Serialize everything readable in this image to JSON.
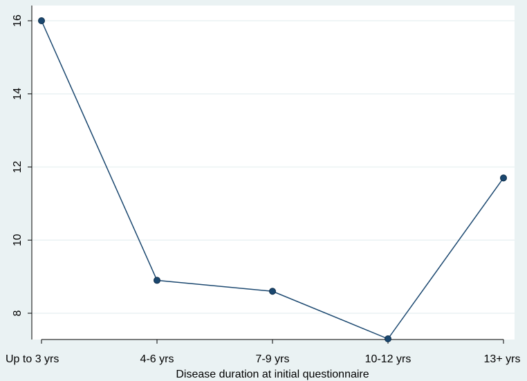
{
  "chart_data": {
    "type": "line",
    "title": "",
    "xlabel": "Disease duration at initial questionnaire",
    "ylabel": "",
    "categories": [
      "Up to 3 yrs",
      "4-6 yrs",
      "7-9 yrs",
      "10-12 yrs",
      "13+ yrs"
    ],
    "series": [
      {
        "values": [
          16.0,
          8.9,
          8.6,
          7.3,
          11.7
        ]
      }
    ],
    "yticks": [
      8,
      10,
      12,
      14,
      16
    ],
    "ylim": [
      7.1,
      16.3
    ],
    "grid": true,
    "legend": "none",
    "colors": {
      "background": "#eaf2f3",
      "plot_area": "#ffffff",
      "gridline": "#eaf2f3",
      "line": "#1a476f",
      "marker": "#1a476f",
      "axis": "#000000"
    }
  }
}
